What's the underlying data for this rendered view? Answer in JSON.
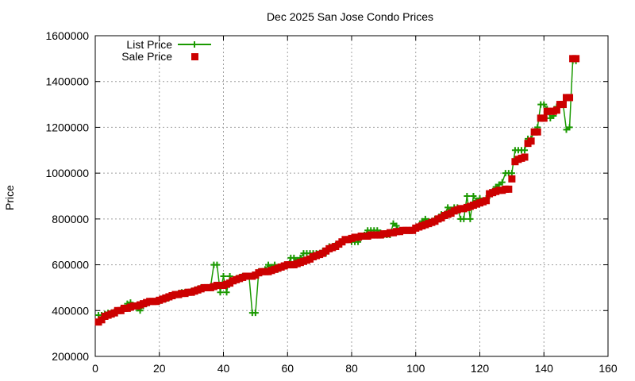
{
  "chart_data": {
    "type": "line",
    "title": "Dec 2025 San Jose Condo Prices",
    "xlabel": "",
    "ylabel": "Price",
    "xlim": [
      0,
      160
    ],
    "ylim": [
      200000,
      1600000
    ],
    "xticks": [
      0,
      20,
      40,
      60,
      80,
      100,
      120,
      140,
      160
    ],
    "yticks": [
      200000,
      400000,
      600000,
      800000,
      1000000,
      1200000,
      1400000,
      1600000
    ],
    "xtick_labels": [
      "0",
      "20",
      "40",
      "60",
      "80",
      "100",
      "120",
      "140",
      "160"
    ],
    "ytick_labels": [
      "200000",
      "400000",
      "600000",
      "800000",
      "1000000",
      "1200000",
      "1400000",
      "1600000"
    ],
    "grid": true,
    "legend_position": "top-left",
    "series": [
      {
        "name": "List Price",
        "style": "line-points",
        "color": "#1a9900",
        "marker": "plus",
        "x": [
          1,
          2,
          3,
          4,
          5,
          6,
          7,
          8,
          9,
          10,
          11,
          12,
          13,
          14,
          15,
          16,
          17,
          18,
          19,
          20,
          21,
          22,
          23,
          24,
          25,
          26,
          27,
          28,
          29,
          30,
          31,
          32,
          33,
          34,
          35,
          36,
          37,
          38,
          39,
          40,
          41,
          42,
          43,
          44,
          45,
          46,
          47,
          48,
          49,
          50,
          51,
          52,
          53,
          54,
          55,
          56,
          57,
          58,
          59,
          60,
          61,
          62,
          63,
          64,
          65,
          66,
          67,
          68,
          69,
          70,
          71,
          72,
          73,
          74,
          75,
          76,
          77,
          78,
          79,
          80,
          81,
          82,
          83,
          84,
          85,
          86,
          87,
          88,
          89,
          90,
          91,
          92,
          93,
          94,
          95,
          96,
          97,
          98,
          99,
          100,
          101,
          102,
          103,
          104,
          105,
          106,
          107,
          108,
          109,
          110,
          111,
          112,
          113,
          114,
          115,
          116,
          117,
          118,
          119,
          120,
          121,
          122,
          123,
          124,
          125,
          126,
          127,
          128,
          129,
          130,
          131,
          132,
          133,
          134,
          135,
          136,
          137,
          138,
          139,
          140,
          141,
          142,
          143,
          144,
          145,
          146,
          147,
          148,
          149,
          150
        ],
        "values": [
          380000,
          380000,
          385000,
          390000,
          390000,
          395000,
          400000,
          405000,
          410000,
          430000,
          435000,
          420000,
          410000,
          400000,
          420000,
          430000,
          440000,
          440000,
          440000,
          440000,
          450000,
          450000,
          455000,
          465000,
          470000,
          475000,
          480000,
          480000,
          480000,
          485000,
          490000,
          495000,
          500000,
          500000,
          500000,
          505000,
          600000,
          600000,
          480000,
          550000,
          480000,
          550000,
          530000,
          540000,
          545000,
          550000,
          550000,
          550000,
          390000,
          390000,
          570000,
          570000,
          580000,
          600000,
          590000,
          600000,
          580000,
          590000,
          595000,
          600000,
          630000,
          630000,
          620000,
          630000,
          650000,
          650000,
          650000,
          650000,
          650000,
          650000,
          660000,
          650000,
          680000,
          680000,
          685000,
          690000,
          700000,
          710000,
          710000,
          700000,
          700000,
          700000,
          720000,
          730000,
          750000,
          750000,
          750000,
          750000,
          740000,
          730000,
          730000,
          730000,
          780000,
          770000,
          750000,
          750000,
          750000,
          750000,
          750000,
          760000,
          770000,
          790000,
          800000,
          790000,
          790000,
          800000,
          800000,
          820000,
          820000,
          850000,
          840000,
          850000,
          850000,
          800000,
          800000,
          900000,
          800000,
          900000,
          880000,
          890000,
          880000,
          890000,
          900000,
          920000,
          940000,
          950000,
          960000,
          1000000,
          1000000,
          1000000,
          1100000,
          1100000,
          1100000,
          1100000,
          1150000,
          1150000,
          1180000,
          1200000,
          1300000,
          1300000,
          1280000,
          1240000,
          1250000,
          1290000,
          1300000,
          1300000,
          1190000,
          1200000,
          1490000,
          1490000
        ]
      },
      {
        "name": "Sale Price",
        "style": "points",
        "color": "#cc0000",
        "marker": "square",
        "x": [
          1,
          2,
          3,
          4,
          5,
          6,
          7,
          8,
          9,
          10,
          11,
          12,
          13,
          14,
          15,
          16,
          17,
          18,
          19,
          20,
          21,
          22,
          23,
          24,
          25,
          26,
          27,
          28,
          29,
          30,
          31,
          32,
          33,
          34,
          35,
          36,
          37,
          38,
          39,
          40,
          41,
          42,
          43,
          44,
          45,
          46,
          47,
          48,
          49,
          50,
          51,
          52,
          53,
          54,
          55,
          56,
          57,
          58,
          59,
          60,
          61,
          62,
          63,
          64,
          65,
          66,
          67,
          68,
          69,
          70,
          71,
          72,
          73,
          74,
          75,
          76,
          77,
          78,
          79,
          80,
          81,
          82,
          83,
          84,
          85,
          86,
          87,
          88,
          89,
          90,
          91,
          92,
          93,
          94,
          95,
          96,
          97,
          98,
          99,
          100,
          101,
          102,
          103,
          104,
          105,
          106,
          107,
          108,
          109,
          110,
          111,
          112,
          113,
          114,
          115,
          116,
          117,
          118,
          119,
          120,
          121,
          122,
          123,
          124,
          125,
          126,
          127,
          128,
          129,
          130,
          131,
          132,
          133,
          134,
          135,
          136,
          137,
          138,
          139,
          140,
          141,
          142,
          143,
          144,
          145,
          146,
          147,
          148,
          149,
          150
        ],
        "values": [
          350000,
          360000,
          375000,
          380000,
          385000,
          390000,
          400000,
          400000,
          410000,
          410000,
          415000,
          420000,
          420000,
          425000,
          430000,
          435000,
          440000,
          440000,
          440000,
          445000,
          450000,
          455000,
          460000,
          465000,
          470000,
          470000,
          475000,
          475000,
          480000,
          480000,
          485000,
          490000,
          495000,
          500000,
          500000,
          500000,
          505000,
          510000,
          510000,
          510000,
          515000,
          520000,
          530000,
          535000,
          540000,
          545000,
          550000,
          550000,
          550000,
          555000,
          565000,
          570000,
          570000,
          570000,
          575000,
          580000,
          585000,
          590000,
          595000,
          600000,
          600000,
          600000,
          605000,
          610000,
          615000,
          620000,
          625000,
          635000,
          640000,
          645000,
          650000,
          660000,
          670000,
          675000,
          680000,
          690000,
          700000,
          710000,
          710000,
          715000,
          720000,
          720000,
          725000,
          725000,
          725000,
          730000,
          730000,
          730000,
          730000,
          735000,
          735000,
          740000,
          740000,
          745000,
          745000,
          750000,
          750000,
          750000,
          750000,
          760000,
          765000,
          770000,
          775000,
          780000,
          785000,
          790000,
          800000,
          805000,
          815000,
          820000,
          825000,
          835000,
          840000,
          845000,
          845000,
          850000,
          855000,
          860000,
          865000,
          870000,
          875000,
          880000,
          910000,
          915000,
          920000,
          925000,
          925000,
          930000,
          930000,
          975000,
          1050000,
          1060000,
          1065000,
          1070000,
          1130000,
          1140000,
          1180000,
          1180000,
          1240000,
          1240000,
          1270000,
          1270000,
          1270000,
          1275000,
          1300000,
          1300000,
          1330000,
          1330000,
          1500000,
          1500000
        ]
      }
    ]
  }
}
